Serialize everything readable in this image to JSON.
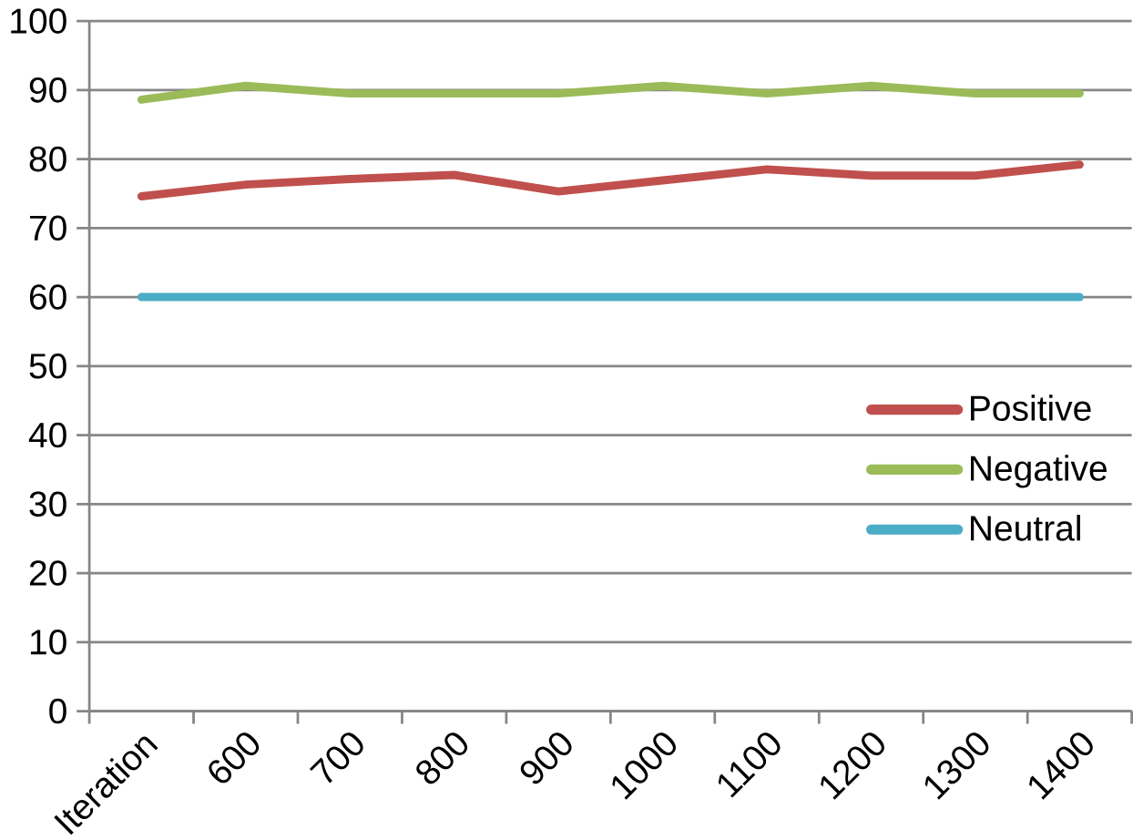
{
  "chart_data": {
    "type": "line",
    "categories": [
      "Iteration",
      "600",
      "700",
      "800",
      "900",
      "1000",
      "1100",
      "1200",
      "1300",
      "1400"
    ],
    "series": [
      {
        "name": "Positive",
        "color": "#c0504d",
        "values": [
          74.6,
          76.3,
          77.1,
          77.7,
          75.3,
          76.9,
          78.5,
          77.6,
          77.6,
          79.2
        ]
      },
      {
        "name": "Negative",
        "color": "#9bbb59",
        "values": [
          88.6,
          90.6,
          89.5,
          89.5,
          89.5,
          90.6,
          89.5,
          90.6,
          89.5,
          89.5
        ]
      },
      {
        "name": "Neutral",
        "color": "#4bacc6",
        "values": [
          60,
          60,
          60,
          60,
          60,
          60,
          60,
          60,
          60,
          60
        ]
      }
    ],
    "ylim": [
      0,
      100
    ],
    "yticks": [
      0,
      10,
      20,
      30,
      40,
      50,
      60,
      70,
      80,
      90,
      100
    ],
    "grid": "y",
    "legend": "right",
    "marker": "none",
    "line_style": "solid"
  }
}
